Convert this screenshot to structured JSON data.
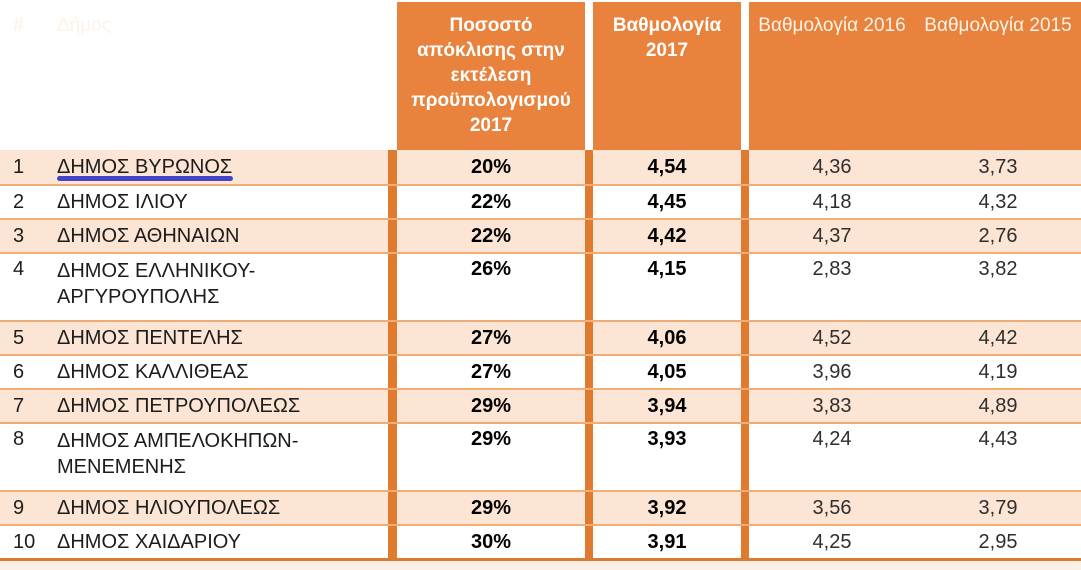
{
  "chart_data": {
    "type": "table",
    "columns": {
      "rank": "#",
      "municipality": "Δήμος",
      "deviation": "Ποσοστό απόκλισης στην εκτέλεση προϋπολογισμού 2017",
      "score_2017": "Βαθμολογία 2017",
      "score_2016": "Βαθμολογία 2016",
      "score_2015": "Βαθμολογία 2015"
    },
    "rows": [
      {
        "rank": "1",
        "name": "ΔΗΜΟΣ ΒΥΡΩΝΟΣ",
        "deviation": "20%",
        "score_2017": "4,54",
        "score_2016": "4,36",
        "score_2015": "3,73",
        "underlined": true
      },
      {
        "rank": "2",
        "name": "ΔΗΜΟΣ ΙΛΙΟΥ",
        "deviation": "22%",
        "score_2017": "4,45",
        "score_2016": "4,18",
        "score_2015": "4,32",
        "underlined": false
      },
      {
        "rank": "3",
        "name": "ΔΗΜΟΣ ΑΘΗΝΑΙΩΝ",
        "deviation": "22%",
        "score_2017": "4,42",
        "score_2016": "4,37",
        "score_2015": "2,76",
        "underlined": false
      },
      {
        "rank": "4",
        "name": "ΔΗΜΟΣ ΕΛΛΗΝΙΚΟΥ-ΑΡΓΥΡΟΥΠΟΛΗΣ",
        "deviation": "26%",
        "score_2017": "4,15",
        "score_2016": "2,83",
        "score_2015": "3,82",
        "underlined": false
      },
      {
        "rank": "5",
        "name": "ΔΗΜΟΣ ΠΕΝΤΕΛΗΣ",
        "deviation": "27%",
        "score_2017": "4,06",
        "score_2016": "4,52",
        "score_2015": "4,42",
        "underlined": false
      },
      {
        "rank": "6",
        "name": "ΔΗΜΟΣ ΚΑΛΛΙΘΕΑΣ",
        "deviation": "27%",
        "score_2017": "4,05",
        "score_2016": "3,96",
        "score_2015": "4,19",
        "underlined": false
      },
      {
        "rank": "7",
        "name": "ΔΗΜΟΣ ΠΕΤΡΟΥΠΟΛΕΩΣ",
        "deviation": "29%",
        "score_2017": "3,94",
        "score_2016": "3,83",
        "score_2015": "4,89",
        "underlined": false
      },
      {
        "rank": "8",
        "name": "ΔΗΜΟΣ ΑΜΠΕΛΟΚΗΠΩΝ-ΜΕΝΕΜΕΝΗΣ",
        "deviation": "29%",
        "score_2017": "3,93",
        "score_2016": "4,24",
        "score_2015": "4,43",
        "underlined": false
      },
      {
        "rank": "9",
        "name": "ΔΗΜΟΣ ΗΛΙΟΥΠΟΛΕΩΣ",
        "deviation": "29%",
        "score_2017": "3,92",
        "score_2016": "3,56",
        "score_2015": "3,79",
        "underlined": false
      },
      {
        "rank": "10",
        "name": "ΔΗΜΟΣ ΧΑΙΔΑΡΙΟΥ",
        "deviation": "30%",
        "score_2017": "3,91",
        "score_2016": "4,25",
        "score_2015": "2,95",
        "underlined": false
      }
    ],
    "annotations": {
      "underline": {
        "row_rank": "1",
        "target": "ΔΗΜΟΣ ΒΥΡΩΝΟΣ",
        "color": "#4244C5"
      }
    },
    "layout": {
      "header_background": "#E8823C",
      "striped_row_background": "#FCE5D4",
      "plain_row_background": "#FFFFFF",
      "divider_color": "#DF7A2E",
      "row_separator_color": "#F2AC75",
      "bottom_border_color": "#D97C2E"
    }
  }
}
